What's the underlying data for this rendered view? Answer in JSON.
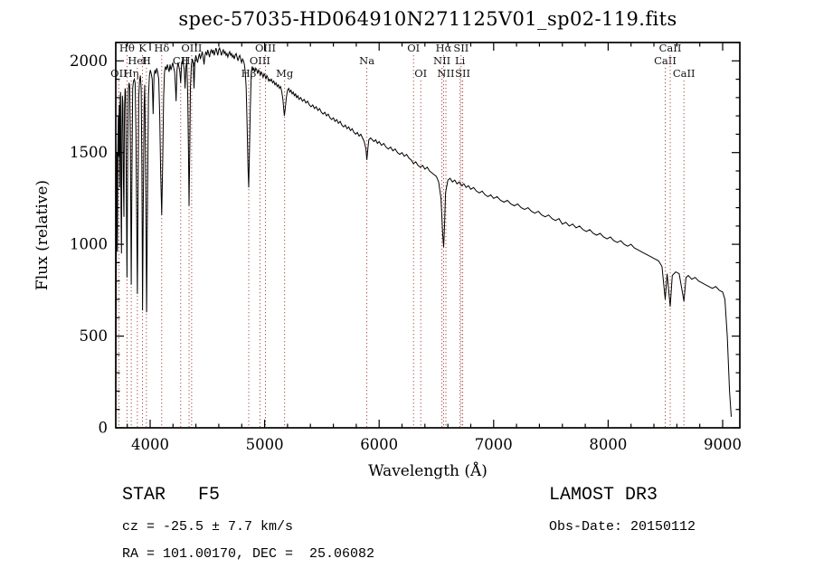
{
  "title": "spec-57035-HD064910N271125V01_sp02-119.fits",
  "footer": {
    "class_label": "STAR   F5",
    "survey": "LAMOST DR3",
    "cz": "cz = -25.5 ± 7.7 km/s",
    "obs_date": "Obs-Date: 20150112",
    "coords": "RA = 101.00170, DEC =  25.06082"
  },
  "chart_data": {
    "type": "line",
    "title": "spec-57035-HD064910N271125V01_sp02-119.fits",
    "xlabel": "Wavelength (Å)",
    "ylabel": "Flux (relative)",
    "xlim": [
      3700,
      9150
    ],
    "ylim": [
      0,
      2100
    ],
    "xticks": [
      4000,
      5000,
      6000,
      7000,
      8000,
      9000
    ],
    "yticks": [
      0,
      500,
      1000,
      1500,
      2000
    ],
    "x_minor_step": 200,
    "y_minor_step": 100,
    "grid": false,
    "line_color": "#000000",
    "feature_line_color": "#a03a34",
    "features": [
      {
        "wavelength": 3727,
        "label": "OII",
        "row": 2
      },
      {
        "wavelength": 3798,
        "label": "Hθ",
        "row": 0
      },
      {
        "wavelength": 3835,
        "label": "Hη",
        "row": 2
      },
      {
        "wavelength": 3889,
        "label": "HeI",
        "row": 1
      },
      {
        "wavelength": 3933,
        "label": "K",
        "row": 0
      },
      {
        "wavelength": 3968,
        "label": "H",
        "row": 1
      },
      {
        "wavelength": 4101,
        "label": "Hδ",
        "row": 0
      },
      {
        "wavelength": 4267,
        "label": "CII",
        "row": 1
      },
      {
        "wavelength": 4340,
        "label": "Hγ",
        "row": 1
      },
      {
        "wavelength": 4363,
        "label": "OIII",
        "row": 0
      },
      {
        "wavelength": 4861,
        "label": "Hβ",
        "row": 2
      },
      {
        "wavelength": 4959,
        "label": "OIII",
        "row": 1
      },
      {
        "wavelength": 5007,
        "label": "OIII",
        "row": 0
      },
      {
        "wavelength": 5175,
        "label": "Mg",
        "row": 2
      },
      {
        "wavelength": 5893,
        "label": "Na",
        "row": 1
      },
      {
        "wavelength": 6300,
        "label": "OI",
        "row": 0
      },
      {
        "wavelength": 6363,
        "label": "OI",
        "row": 2
      },
      {
        "wavelength": 6548,
        "label": "NII",
        "row": 1
      },
      {
        "wavelength": 6563,
        "label": "Hα",
        "row": 0
      },
      {
        "wavelength": 6583,
        "label": "NII",
        "row": 2
      },
      {
        "wavelength": 6707,
        "label": "Li",
        "row": 1
      },
      {
        "wavelength": 6716,
        "label": "SII",
        "row": 0
      },
      {
        "wavelength": 6730,
        "label": "SII",
        "row": 2
      },
      {
        "wavelength": 8498,
        "label": "CaII",
        "row": 1
      },
      {
        "wavelength": 8542,
        "label": "CaII",
        "row": 0
      },
      {
        "wavelength": 8662,
        "label": "CaII",
        "row": 2
      }
    ],
    "points": [
      [
        3700,
        80
      ],
      [
        3703,
        620
      ],
      [
        3706,
        1180
      ],
      [
        3710,
        1500
      ],
      [
        3714,
        960
      ],
      [
        3718,
        1520
      ],
      [
        3722,
        1700
      ],
      [
        3726,
        1480
      ],
      [
        3730,
        1760
      ],
      [
        3734,
        1310
      ],
      [
        3738,
        1780
      ],
      [
        3742,
        1830
      ],
      [
        3746,
        1210
      ],
      [
        3750,
        950
      ],
      [
        3754,
        1610
      ],
      [
        3758,
        1810
      ],
      [
        3762,
        1770
      ],
      [
        3766,
        1360
      ],
      [
        3771,
        1150
      ],
      [
        3776,
        1730
      ],
      [
        3781,
        1850
      ],
      [
        3786,
        1830
      ],
      [
        3791,
        1410
      ],
      [
        3798,
        820
      ],
      [
        3804,
        1510
      ],
      [
        3810,
        1840
      ],
      [
        3816,
        1880
      ],
      [
        3822,
        1860
      ],
      [
        3828,
        1510
      ],
      [
        3835,
        780
      ],
      [
        3842,
        1460
      ],
      [
        3848,
        1850
      ],
      [
        3855,
        1890
      ],
      [
        3862,
        1900
      ],
      [
        3869,
        1880
      ],
      [
        3876,
        1610
      ],
      [
        3883,
        1110
      ],
      [
        3889,
        730
      ],
      [
        3895,
        1310
      ],
      [
        3901,
        1800
      ],
      [
        3908,
        1890
      ],
      [
        3915,
        1920
      ],
      [
        3922,
        1850
      ],
      [
        3928,
        1410
      ],
      [
        3934,
        640
      ],
      [
        3940,
        1210
      ],
      [
        3947,
        1750
      ],
      [
        3953,
        1870
      ],
      [
        3960,
        1500
      ],
      [
        3969,
        630
      ],
      [
        3978,
        1310
      ],
      [
        3986,
        1810
      ],
      [
        3994,
        1920
      ],
      [
        4002,
        1950
      ],
      [
        4010,
        1930
      ],
      [
        4018,
        1900
      ],
      [
        4026,
        1710
      ],
      [
        4034,
        1920
      ],
      [
        4042,
        1950
      ],
      [
        4050,
        1930
      ],
      [
        4058,
        1960
      ],
      [
        4066,
        1940
      ],
      [
        4075,
        1900
      ],
      [
        4084,
        1700
      ],
      [
        4092,
        1400
      ],
      [
        4101,
        1160
      ],
      [
        4110,
        1450
      ],
      [
        4118,
        1800
      ],
      [
        4126,
        1940
      ],
      [
        4134,
        1970
      ],
      [
        4142,
        1950
      ],
      [
        4150,
        1980
      ],
      [
        4158,
        1960
      ],
      [
        4166,
        1940
      ],
      [
        4174,
        1980
      ],
      [
        4182,
        1950
      ],
      [
        4190,
        1970
      ],
      [
        4198,
        1990
      ],
      [
        4206,
        1960
      ],
      [
        4214,
        1940
      ],
      [
        4222,
        1850
      ],
      [
        4227,
        1780
      ],
      [
        4235,
        1950
      ],
      [
        4243,
        1990
      ],
      [
        4251,
        1970
      ],
      [
        4259,
        1940
      ],
      [
        4267,
        1880
      ],
      [
        4275,
        1990
      ],
      [
        4283,
        2000
      ],
      [
        4291,
        1980
      ],
      [
        4299,
        1950
      ],
      [
        4305,
        1850
      ],
      [
        4313,
        1970
      ],
      [
        4321,
        1990
      ],
      [
        4329,
        1800
      ],
      [
        4335,
        1500
      ],
      [
        4340,
        1210
      ],
      [
        4346,
        1500
      ],
      [
        4352,
        1850
      ],
      [
        4360,
        1980
      ],
      [
        4368,
        2010
      ],
      [
        4376,
        1990
      ],
      [
        4383,
        1850
      ],
      [
        4391,
        2000
      ],
      [
        4399,
        2030
      ],
      [
        4407,
        2010
      ],
      [
        4415,
        1990
      ],
      [
        4423,
        2020
      ],
      [
        4431,
        2040
      ],
      [
        4439,
        2010
      ],
      [
        4447,
        2030
      ],
      [
        4455,
        2050
      ],
      [
        4463,
        2020
      ],
      [
        4471,
        1980
      ],
      [
        4479,
        2030
      ],
      [
        4487,
        2050
      ],
      [
        4495,
        2030
      ],
      [
        4503,
        2060
      ],
      [
        4511,
        2040
      ],
      [
        4519,
        2020
      ],
      [
        4527,
        2050
      ],
      [
        4535,
        2060
      ],
      [
        4543,
        2040
      ],
      [
        4551,
        2060
      ],
      [
        4559,
        2030
      ],
      [
        4567,
        2050
      ],
      [
        4575,
        2070
      ],
      [
        4583,
        2050
      ],
      [
        4591,
        2030
      ],
      [
        4599,
        2060
      ],
      [
        4607,
        2070
      ],
      [
        4615,
        2050
      ],
      [
        4623,
        2030
      ],
      [
        4631,
        2050
      ],
      [
        4639,
        2060
      ],
      [
        4647,
        2040
      ],
      [
        4655,
        2050
      ],
      [
        4663,
        2030
      ],
      [
        4671,
        2040
      ],
      [
        4679,
        2020
      ],
      [
        4687,
        2040
      ],
      [
        4695,
        2050
      ],
      [
        4703,
        2030
      ],
      [
        4711,
        2040
      ],
      [
        4719,
        2020
      ],
      [
        4727,
        2030
      ],
      [
        4735,
        2010
      ],
      [
        4743,
        2030
      ],
      [
        4751,
        2040
      ],
      [
        4759,
        2020
      ],
      [
        4767,
        2000
      ],
      [
        4775,
        2020
      ],
      [
        4783,
        2030
      ],
      [
        4791,
        2010
      ],
      [
        4799,
        1990
      ],
      [
        4807,
        2010
      ],
      [
        4815,
        2000
      ],
      [
        4823,
        1980
      ],
      [
        4831,
        1940
      ],
      [
        4839,
        1850
      ],
      [
        4847,
        1650
      ],
      [
        4855,
        1420
      ],
      [
        4861,
        1310
      ],
      [
        4867,
        1480
      ],
      [
        4875,
        1750
      ],
      [
        4883,
        1930
      ],
      [
        4891,
        1970
      ],
      [
        4899,
        1950
      ],
      [
        4907,
        1960
      ],
      [
        4915,
        1940
      ],
      [
        4923,
        1960
      ],
      [
        4931,
        1950
      ],
      [
        4939,
        1930
      ],
      [
        4947,
        1950
      ],
      [
        4955,
        1940
      ],
      [
        4963,
        1920
      ],
      [
        4971,
        1940
      ],
      [
        4979,
        1930
      ],
      [
        4987,
        1910
      ],
      [
        4995,
        1930
      ],
      [
        5003,
        1920
      ],
      [
        5011,
        1900
      ],
      [
        5019,
        1920
      ],
      [
        5027,
        1910
      ],
      [
        5035,
        1890
      ],
      [
        5043,
        1900
      ],
      [
        5051,
        1890
      ],
      [
        5060,
        1900
      ],
      [
        5070,
        1880
      ],
      [
        5080,
        1890
      ],
      [
        5090,
        1870
      ],
      [
        5100,
        1880
      ],
      [
        5110,
        1860
      ],
      [
        5120,
        1870
      ],
      [
        5130,
        1850
      ],
      [
        5140,
        1860
      ],
      [
        5150,
        1830
      ],
      [
        5160,
        1790
      ],
      [
        5172,
        1700
      ],
      [
        5180,
        1740
      ],
      [
        5190,
        1800
      ],
      [
        5200,
        1840
      ],
      [
        5210,
        1850
      ],
      [
        5220,
        1830
      ],
      [
        5230,
        1840
      ],
      [
        5240,
        1820
      ],
      [
        5250,
        1830
      ],
      [
        5260,
        1810
      ],
      [
        5270,
        1820
      ],
      [
        5280,
        1800
      ],
      [
        5290,
        1810
      ],
      [
        5300,
        1790
      ],
      [
        5315,
        1800
      ],
      [
        5330,
        1780
      ],
      [
        5345,
        1790
      ],
      [
        5360,
        1770
      ],
      [
        5375,
        1780
      ],
      [
        5390,
        1760
      ],
      [
        5405,
        1750
      ],
      [
        5420,
        1760
      ],
      [
        5435,
        1740
      ],
      [
        5450,
        1750
      ],
      [
        5465,
        1730
      ],
      [
        5480,
        1740
      ],
      [
        5495,
        1720
      ],
      [
        5510,
        1710
      ],
      [
        5525,
        1720
      ],
      [
        5540,
        1700
      ],
      [
        5555,
        1710
      ],
      [
        5570,
        1690
      ],
      [
        5585,
        1680
      ],
      [
        5600,
        1690
      ],
      [
        5615,
        1670
      ],
      [
        5630,
        1680
      ],
      [
        5645,
        1660
      ],
      [
        5660,
        1670
      ],
      [
        5675,
        1650
      ],
      [
        5690,
        1640
      ],
      [
        5705,
        1650
      ],
      [
        5720,
        1630
      ],
      [
        5735,
        1640
      ],
      [
        5750,
        1620
      ],
      [
        5765,
        1630
      ],
      [
        5780,
        1610
      ],
      [
        5795,
        1600
      ],
      [
        5810,
        1610
      ],
      [
        5825,
        1590
      ],
      [
        5840,
        1600
      ],
      [
        5855,
        1580
      ],
      [
        5870,
        1560
      ],
      [
        5885,
        1520
      ],
      [
        5893,
        1460
      ],
      [
        5901,
        1520
      ],
      [
        5910,
        1570
      ],
      [
        5925,
        1580
      ],
      [
        5940,
        1570
      ],
      [
        5955,
        1560
      ],
      [
        5970,
        1570
      ],
      [
        5985,
        1550
      ],
      [
        6000,
        1560
      ],
      [
        6020,
        1540
      ],
      [
        6040,
        1550
      ],
      [
        6060,
        1530
      ],
      [
        6080,
        1520
      ],
      [
        6100,
        1530
      ],
      [
        6120,
        1510
      ],
      [
        6140,
        1520
      ],
      [
        6160,
        1500
      ],
      [
        6180,
        1490
      ],
      [
        6200,
        1500
      ],
      [
        6220,
        1480
      ],
      [
        6240,
        1490
      ],
      [
        6260,
        1470
      ],
      [
        6280,
        1460
      ],
      [
        6300,
        1440
      ],
      [
        6320,
        1450
      ],
      [
        6340,
        1430
      ],
      [
        6360,
        1420
      ],
      [
        6380,
        1430
      ],
      [
        6400,
        1410
      ],
      [
        6420,
        1420
      ],
      [
        6440,
        1400
      ],
      [
        6460,
        1390
      ],
      [
        6480,
        1380
      ],
      [
        6500,
        1370
      ],
      [
        6520,
        1340
      ],
      [
        6540,
        1250
      ],
      [
        6555,
        1050
      ],
      [
        6563,
        985
      ],
      [
        6571,
        1100
      ],
      [
        6580,
        1280
      ],
      [
        6600,
        1350
      ],
      [
        6620,
        1360
      ],
      [
        6640,
        1340
      ],
      [
        6660,
        1350
      ],
      [
        6680,
        1330
      ],
      [
        6700,
        1340
      ],
      [
        6720,
        1320
      ],
      [
        6740,
        1330
      ],
      [
        6760,
        1310
      ],
      [
        6780,
        1320
      ],
      [
        6800,
        1300
      ],
      [
        6825,
        1310
      ],
      [
        6850,
        1290
      ],
      [
        6875,
        1280
      ],
      [
        6900,
        1290
      ],
      [
        6925,
        1270
      ],
      [
        6950,
        1260
      ],
      [
        6975,
        1270
      ],
      [
        7000,
        1250
      ],
      [
        7030,
        1260
      ],
      [
        7060,
        1240
      ],
      [
        7090,
        1230
      ],
      [
        7120,
        1240
      ],
      [
        7150,
        1220
      ],
      [
        7180,
        1210
      ],
      [
        7210,
        1220
      ],
      [
        7240,
        1200
      ],
      [
        7270,
        1190
      ],
      [
        7300,
        1200
      ],
      [
        7330,
        1180
      ],
      [
        7360,
        1170
      ],
      [
        7390,
        1180
      ],
      [
        7420,
        1160
      ],
      [
        7450,
        1150
      ],
      [
        7480,
        1160
      ],
      [
        7510,
        1140
      ],
      [
        7540,
        1130
      ],
      [
        7570,
        1140
      ],
      [
        7600,
        1110
      ],
      [
        7630,
        1120
      ],
      [
        7660,
        1100
      ],
      [
        7690,
        1110
      ],
      [
        7720,
        1090
      ],
      [
        7750,
        1100
      ],
      [
        7780,
        1080
      ],
      [
        7810,
        1070
      ],
      [
        7840,
        1080
      ],
      [
        7870,
        1060
      ],
      [
        7900,
        1050
      ],
      [
        7930,
        1060
      ],
      [
        7960,
        1040
      ],
      [
        7990,
        1030
      ],
      [
        8020,
        1040
      ],
      [
        8050,
        1020
      ],
      [
        8080,
        1010
      ],
      [
        8110,
        1020
      ],
      [
        8140,
        1000
      ],
      [
        8170,
        990
      ],
      [
        8200,
        1000
      ],
      [
        8230,
        980
      ],
      [
        8260,
        970
      ],
      [
        8290,
        960
      ],
      [
        8320,
        950
      ],
      [
        8350,
        940
      ],
      [
        8380,
        930
      ],
      [
        8410,
        920
      ],
      [
        8440,
        910
      ],
      [
        8470,
        880
      ],
      [
        8498,
        700
      ],
      [
        8515,
        840
      ],
      [
        8542,
        660
      ],
      [
        8560,
        830
      ],
      [
        8590,
        850
      ],
      [
        8620,
        840
      ],
      [
        8662,
        690
      ],
      [
        8680,
        820
      ],
      [
        8700,
        830
      ],
      [
        8730,
        810
      ],
      [
        8760,
        820
      ],
      [
        8790,
        800
      ],
      [
        8820,
        790
      ],
      [
        8850,
        780
      ],
      [
        8880,
        770
      ],
      [
        8910,
        760
      ],
      [
        8940,
        770
      ],
      [
        8970,
        750
      ],
      [
        9000,
        740
      ],
      [
        9020,
        700
      ],
      [
        9040,
        500
      ],
      [
        9060,
        200
      ],
      [
        9075,
        60
      ]
    ]
  }
}
